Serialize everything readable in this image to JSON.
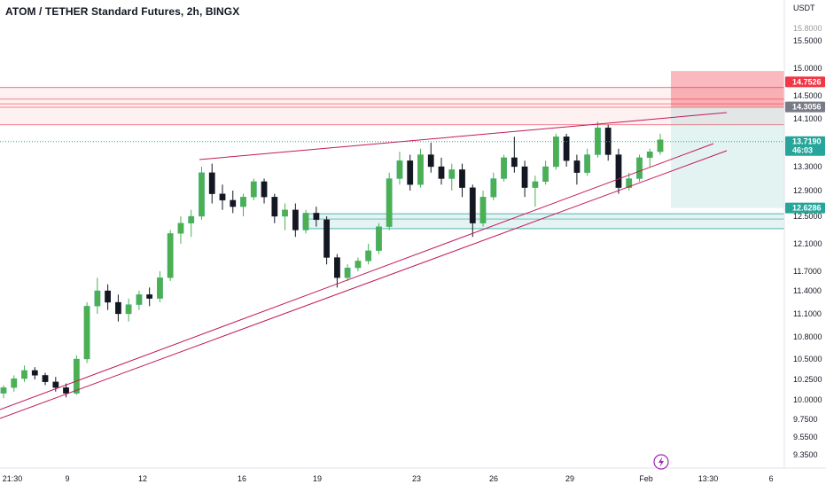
{
  "chart_data": {
    "type": "candlestick",
    "title": "ATOM / TETHER Standard Futures, 2h, BINGX",
    "currency": "USDT",
    "y_ticks": [
      15.5,
      15.0,
      14.5,
      14.1,
      13.7,
      13.3,
      12.9,
      12.5,
      12.1,
      11.7,
      11.4,
      11.1,
      10.8,
      10.5,
      10.25,
      10.0,
      9.75,
      9.55,
      9.35
    ],
    "y_tick_labels": [
      "15.5000",
      "15.0000",
      "14.5000",
      "14.1000",
      "13.7000",
      "13.3000",
      "12.9000",
      "12.5000",
      "12.1000",
      "11.7000",
      "11.4000",
      "11.1000",
      "10.8000",
      "10.5000",
      "10.2500",
      "10.0000",
      "9.7500",
      "9.5500",
      "9.3500"
    ],
    "y_partial_tick": "15.8000",
    "x_ticks": [
      "21:30",
      "9",
      "12",
      "16",
      "19",
      "23",
      "26",
      "29",
      "Feb",
      "13:30",
      "6"
    ],
    "price_tags": [
      {
        "label": "14.7526",
        "price": 14.7526,
        "color": "#f23645"
      },
      {
        "label": "14.3056",
        "price": 14.3056,
        "color": "#787b86"
      },
      {
        "label": "13.7190",
        "price": 13.719,
        "color": "#26a69a",
        "countdown": "46:03"
      },
      {
        "label": "12.6286",
        "price": 12.6286,
        "color": "#26a69a"
      }
    ],
    "last_price": 13.719,
    "resistance_lines": [
      14.65,
      14.44,
      14.36,
      14.3,
      14.0
    ],
    "demand_zone": {
      "top": 12.54,
      "bottom": 12.32,
      "inner": 12.46
    },
    "candles": [
      [
        10.08,
        10.18,
        10.02,
        10.15
      ],
      [
        10.15,
        10.3,
        10.1,
        10.26
      ],
      [
        10.26,
        10.42,
        10.22,
        10.36
      ],
      [
        10.36,
        10.4,
        10.25,
        10.3
      ],
      [
        10.3,
        10.33,
        10.18,
        10.22
      ],
      [
        10.22,
        10.28,
        10.1,
        10.15
      ],
      [
        10.15,
        10.2,
        10.03,
        10.08
      ],
      [
        10.08,
        10.55,
        10.06,
        10.5
      ],
      [
        10.5,
        11.25,
        10.45,
        11.2
      ],
      [
        11.2,
        11.6,
        11.1,
        11.4
      ],
      [
        11.4,
        11.5,
        11.15,
        11.25
      ],
      [
        11.25,
        11.35,
        11.0,
        11.1
      ],
      [
        11.1,
        11.3,
        11.0,
        11.22
      ],
      [
        11.22,
        11.4,
        11.15,
        11.35
      ],
      [
        11.35,
        11.45,
        11.2,
        11.3
      ],
      [
        11.3,
        11.7,
        11.25,
        11.6
      ],
      [
        11.6,
        12.3,
        11.55,
        12.25
      ],
      [
        12.25,
        12.5,
        12.1,
        12.4
      ],
      [
        12.4,
        12.6,
        12.2,
        12.5
      ],
      [
        12.5,
        13.3,
        12.45,
        13.2
      ],
      [
        13.2,
        13.35,
        12.7,
        12.85
      ],
      [
        12.85,
        13.0,
        12.6,
        12.75
      ],
      [
        12.75,
        12.9,
        12.55,
        12.65
      ],
      [
        12.65,
        12.85,
        12.5,
        12.8
      ],
      [
        12.8,
        13.1,
        12.75,
        13.05
      ],
      [
        13.05,
        13.1,
        12.7,
        12.8
      ],
      [
        12.8,
        12.85,
        12.4,
        12.5
      ],
      [
        12.5,
        12.7,
        12.3,
        12.6
      ],
      [
        12.6,
        12.7,
        12.2,
        12.3
      ],
      [
        12.3,
        12.6,
        12.25,
        12.55
      ],
      [
        12.55,
        12.65,
        12.35,
        12.45
      ],
      [
        12.45,
        12.5,
        11.8,
        11.9
      ],
      [
        11.9,
        11.95,
        11.45,
        11.6
      ],
      [
        11.6,
        11.8,
        11.55,
        11.75
      ],
      [
        11.75,
        11.9,
        11.7,
        11.85
      ],
      [
        11.85,
        12.1,
        11.8,
        12.0
      ],
      [
        12.0,
        12.4,
        11.95,
        12.35
      ],
      [
        12.35,
        13.2,
        12.3,
        13.1
      ],
      [
        13.1,
        13.55,
        13.0,
        13.4
      ],
      [
        13.4,
        13.5,
        12.9,
        13.0
      ],
      [
        13.0,
        13.6,
        12.95,
        13.5
      ],
      [
        13.5,
        13.7,
        13.2,
        13.3
      ],
      [
        13.3,
        13.45,
        13.0,
        13.1
      ],
      [
        13.1,
        13.35,
        12.9,
        13.25
      ],
      [
        13.25,
        13.35,
        12.8,
        12.95
      ],
      [
        12.95,
        13.0,
        12.2,
        12.4
      ],
      [
        12.4,
        12.9,
        12.35,
        12.8
      ],
      [
        12.8,
        13.2,
        12.75,
        13.1
      ],
      [
        13.1,
        13.5,
        13.05,
        13.45
      ],
      [
        13.45,
        13.8,
        13.2,
        13.3
      ],
      [
        13.3,
        13.4,
        12.8,
        12.95
      ],
      [
        12.95,
        13.15,
        12.65,
        13.05
      ],
      [
        13.05,
        13.4,
        13.0,
        13.3
      ],
      [
        13.3,
        13.85,
        13.25,
        13.8
      ],
      [
        13.8,
        13.85,
        13.3,
        13.4
      ],
      [
        13.4,
        13.5,
        13.0,
        13.2
      ],
      [
        13.2,
        13.6,
        13.15,
        13.5
      ],
      [
        13.5,
        14.05,
        13.45,
        13.95
      ],
      [
        13.95,
        14.0,
        13.4,
        13.5
      ],
      [
        13.5,
        13.6,
        12.85,
        12.95
      ],
      [
        12.95,
        13.2,
        12.9,
        13.1
      ],
      [
        13.1,
        13.5,
        13.05,
        13.45
      ],
      [
        13.45,
        13.6,
        13.3,
        13.55
      ],
      [
        13.55,
        13.85,
        13.5,
        13.75
      ]
    ]
  }
}
